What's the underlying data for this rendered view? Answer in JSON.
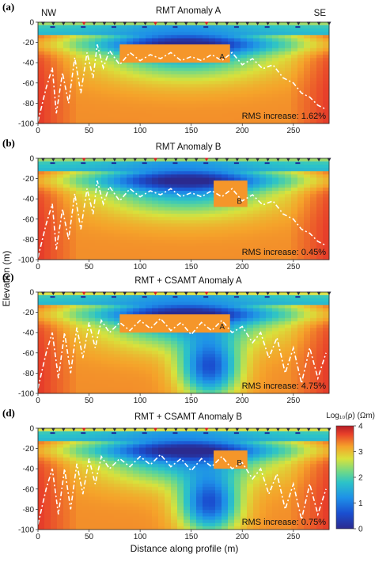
{
  "figure": {
    "ylabel": "Elevation (m)",
    "xlabel": "Distance along profile (m)",
    "colorbar": {
      "label": "Log₁₀(ρ) (Ωm)",
      "ticks": [
        "0",
        "1",
        "2",
        "3",
        "4"
      ]
    }
  },
  "chart_data": [
    {
      "type": "heatmap",
      "panel_label": "(a)",
      "title": "RMT Anomaly A",
      "corner_labels": [
        "NW",
        "SE"
      ],
      "anomaly_label": "A",
      "anomaly_box": {
        "x": [
          80,
          188
        ],
        "z": [
          -22,
          -40
        ]
      },
      "rms_text": "RMS increase: 1.62%",
      "xlim": [
        0,
        285
      ],
      "ylim": [
        -100,
        0
      ],
      "xticks": [
        0,
        50,
        100,
        150,
        200,
        250
      ],
      "yticks": [
        0,
        -20,
        -40,
        -60,
        -80,
        -100
      ],
      "colors": {
        "surface": "#9bd66a",
        "anomaly": "#f5962a",
        "depth_line": "#ffffff"
      },
      "deep_conductor": false,
      "depth_of_investigation": [
        [
          0,
          -98
        ],
        [
          8,
          -65
        ],
        [
          14,
          -45
        ],
        [
          18,
          -90
        ],
        [
          24,
          -50
        ],
        [
          30,
          -80
        ],
        [
          36,
          -35
        ],
        [
          42,
          -70
        ],
        [
          48,
          -30
        ],
        [
          54,
          -55
        ],
        [
          58,
          -22
        ],
        [
          64,
          -45
        ],
        [
          70,
          -28
        ],
        [
          80,
          -42
        ],
        [
          90,
          -30
        ],
        [
          100,
          -38
        ],
        [
          110,
          -32
        ],
        [
          120,
          -36
        ],
        [
          130,
          -30
        ],
        [
          140,
          -38
        ],
        [
          150,
          -34
        ],
        [
          160,
          -38
        ],
        [
          170,
          -32
        ],
        [
          180,
          -38
        ],
        [
          190,
          -30
        ],
        [
          200,
          -42
        ],
        [
          210,
          -36
        ],
        [
          220,
          -46
        ],
        [
          230,
          -42
        ],
        [
          240,
          -55
        ],
        [
          250,
          -60
        ],
        [
          258,
          -70
        ],
        [
          266,
          -74
        ],
        [
          274,
          -82
        ],
        [
          282,
          -86
        ]
      ]
    },
    {
      "type": "heatmap",
      "panel_label": "(b)",
      "title": "RMT Anomaly B",
      "anomaly_label": "B",
      "anomaly_box": {
        "x": [
          172,
          205
        ],
        "z": [
          -22,
          -48
        ]
      },
      "rms_text": "RMS increase: 0.45%",
      "xlim": [
        0,
        285
      ],
      "ylim": [
        -100,
        0
      ],
      "xticks": [
        0,
        50,
        100,
        150,
        200,
        250
      ],
      "yticks": [
        0,
        -20,
        -40,
        -60,
        -80,
        -100
      ],
      "colors": {
        "surface": "#9bd66a",
        "anomaly": "#f5962a",
        "depth_line": "#ffffff"
      },
      "deep_conductor": false,
      "depth_of_investigation": [
        [
          0,
          -98
        ],
        [
          8,
          -65
        ],
        [
          14,
          -45
        ],
        [
          18,
          -90
        ],
        [
          24,
          -50
        ],
        [
          30,
          -80
        ],
        [
          36,
          -35
        ],
        [
          42,
          -70
        ],
        [
          48,
          -30
        ],
        [
          54,
          -55
        ],
        [
          58,
          -22
        ],
        [
          64,
          -45
        ],
        [
          70,
          -28
        ],
        [
          80,
          -42
        ],
        [
          90,
          -30
        ],
        [
          100,
          -38
        ],
        [
          110,
          -32
        ],
        [
          120,
          -36
        ],
        [
          130,
          -30
        ],
        [
          140,
          -38
        ],
        [
          150,
          -34
        ],
        [
          160,
          -38
        ],
        [
          170,
          -32
        ],
        [
          180,
          -38
        ],
        [
          190,
          -30
        ],
        [
          200,
          -42
        ],
        [
          210,
          -36
        ],
        [
          220,
          -46
        ],
        [
          230,
          -42
        ],
        [
          240,
          -55
        ],
        [
          250,
          -60
        ],
        [
          258,
          -70
        ],
        [
          266,
          -74
        ],
        [
          274,
          -82
        ],
        [
          282,
          -86
        ]
      ]
    },
    {
      "type": "heatmap",
      "panel_label": "(c)",
      "title": "RMT + CSAMT Anomaly A",
      "anomaly_label": "A",
      "anomaly_box": {
        "x": [
          80,
          188
        ],
        "z": [
          -22,
          -40
        ]
      },
      "rms_text": "RMS increase: 4.75%",
      "xlim": [
        0,
        285
      ],
      "ylim": [
        -100,
        0
      ],
      "xticks": [
        0,
        50,
        100,
        150,
        200,
        250
      ],
      "yticks": [
        0,
        -20,
        -40,
        -60,
        -80,
        -100
      ],
      "colors": {
        "surface": "#d8e048",
        "anomaly": "#f5962a",
        "depth_line": "#ffffff"
      },
      "deep_conductor": true,
      "depth_of_investigation": [
        [
          0,
          -95
        ],
        [
          8,
          -60
        ],
        [
          14,
          -40
        ],
        [
          20,
          -85
        ],
        [
          26,
          -40
        ],
        [
          32,
          -80
        ],
        [
          38,
          -35
        ],
        [
          44,
          -65
        ],
        [
          50,
          -30
        ],
        [
          56,
          -55
        ],
        [
          62,
          -28
        ],
        [
          70,
          -40
        ],
        [
          80,
          -30
        ],
        [
          90,
          -38
        ],
        [
          100,
          -28
        ],
        [
          110,
          -36
        ],
        [
          120,
          -26
        ],
        [
          130,
          -38
        ],
        [
          140,
          -30
        ],
        [
          150,
          -42
        ],
        [
          160,
          -30
        ],
        [
          170,
          -38
        ],
        [
          180,
          -28
        ],
        [
          190,
          -40
        ],
        [
          200,
          -34
        ],
        [
          210,
          -50
        ],
        [
          218,
          -40
        ],
        [
          226,
          -65
        ],
        [
          234,
          -45
        ],
        [
          242,
          -80
        ],
        [
          250,
          -55
        ],
        [
          258,
          -90
        ],
        [
          266,
          -55
        ],
        [
          274,
          -85
        ],
        [
          282,
          -60
        ]
      ]
    },
    {
      "type": "heatmap",
      "panel_label": "(d)",
      "title": "RMT + CSAMT Anomaly B",
      "anomaly_label": "B",
      "anomaly_box": {
        "x": [
          172,
          205
        ],
        "z": [
          -22,
          -40
        ]
      },
      "rms_text": "RMS increase: 0.75%",
      "xlim": [
        0,
        285
      ],
      "ylim": [
        -100,
        0
      ],
      "xticks": [
        0,
        50,
        100,
        150,
        200,
        250
      ],
      "yticks": [
        0,
        -20,
        -40,
        -60,
        -80,
        -100
      ],
      "colors": {
        "surface": "#d8e048",
        "anomaly": "#f5962a",
        "depth_line": "#ffffff"
      },
      "deep_conductor": true,
      "depth_of_investigation": [
        [
          0,
          -95
        ],
        [
          8,
          -60
        ],
        [
          14,
          -40
        ],
        [
          20,
          -85
        ],
        [
          26,
          -40
        ],
        [
          32,
          -80
        ],
        [
          38,
          -35
        ],
        [
          44,
          -65
        ],
        [
          50,
          -30
        ],
        [
          56,
          -55
        ],
        [
          62,
          -28
        ],
        [
          70,
          -40
        ],
        [
          80,
          -30
        ],
        [
          90,
          -38
        ],
        [
          100,
          -28
        ],
        [
          110,
          -36
        ],
        [
          120,
          -26
        ],
        [
          130,
          -38
        ],
        [
          140,
          -30
        ],
        [
          150,
          -42
        ],
        [
          160,
          -30
        ],
        [
          170,
          -38
        ],
        [
          180,
          -28
        ],
        [
          190,
          -40
        ],
        [
          200,
          -34
        ],
        [
          210,
          -50
        ],
        [
          218,
          -40
        ],
        [
          226,
          -65
        ],
        [
          234,
          -45
        ],
        [
          242,
          -80
        ],
        [
          250,
          -55
        ],
        [
          258,
          -90
        ],
        [
          266,
          -55
        ],
        [
          274,
          -85
        ],
        [
          282,
          -60
        ]
      ]
    }
  ]
}
